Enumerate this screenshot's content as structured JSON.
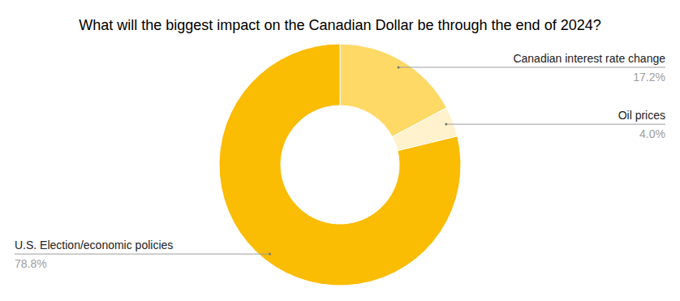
{
  "chart_data": {
    "type": "pie",
    "title": "What will the biggest impact on the Canadian Dollar be through the end of 2024?",
    "categories": [
      "Canadian interest rate change",
      "Oil prices",
      "U.S. Election/economic policies"
    ],
    "values": [
      17.2,
      4.0,
      78.8
    ],
    "value_labels": [
      "17.2%",
      "4.0%",
      "78.8%"
    ],
    "colors": [
      "#ffd966",
      "#fff2cc",
      "#fbbc04"
    ],
    "data_labels": true
  }
}
